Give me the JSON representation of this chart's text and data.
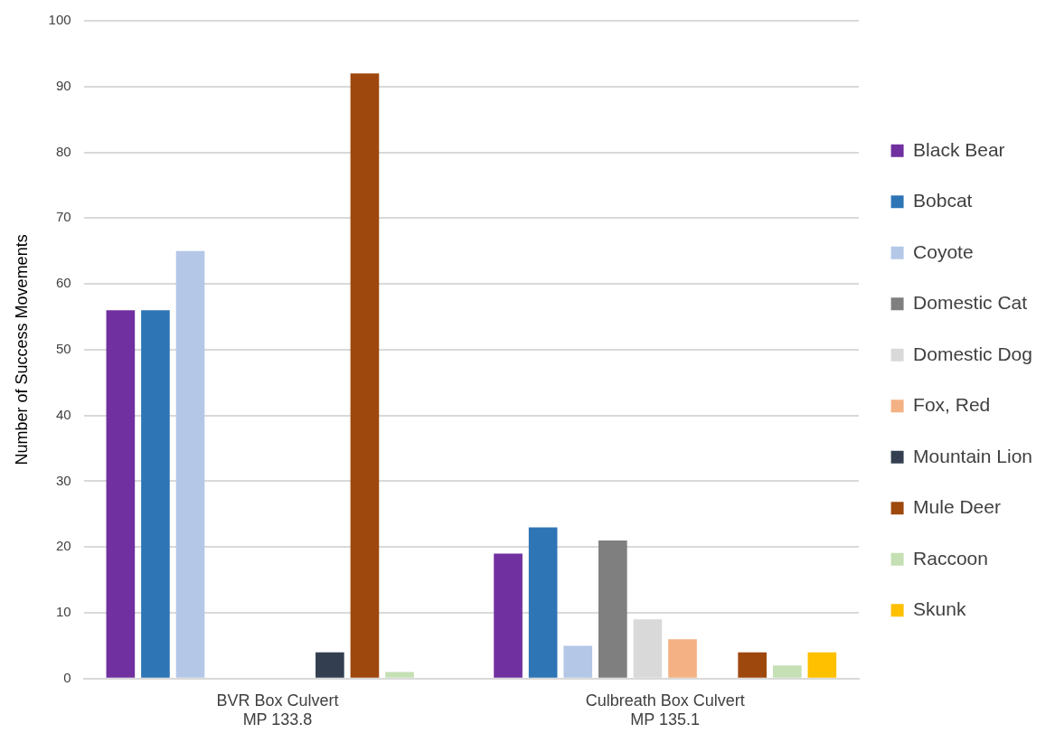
{
  "chart_data": {
    "type": "bar",
    "ylabel": "Number of Success Movements",
    "categories": [
      "BVR Box Culvert\nMP 133.8",
      "Culbreath Box Culvert\nMP 135.1"
    ],
    "series": [
      {
        "name": "Black Bear",
        "color": "#7030a0",
        "values": [
          56,
          19
        ]
      },
      {
        "name": "Bobcat",
        "color": "#2e75b6",
        "values": [
          56,
          23
        ]
      },
      {
        "name": "Coyote",
        "color": "#b4c7e7",
        "values": [
          65,
          5
        ]
      },
      {
        "name": "Domestic Cat",
        "color": "#7f7f7f",
        "values": [
          0,
          21
        ]
      },
      {
        "name": "Domestic Dog",
        "color": "#d9d9d9",
        "values": [
          0,
          9
        ]
      },
      {
        "name": "Fox, Red",
        "color": "#f4b183",
        "values": [
          0,
          6
        ]
      },
      {
        "name": "Mountain Lion",
        "color": "#333f50",
        "values": [
          4,
          0
        ]
      },
      {
        "name": "Mule Deer",
        "color": "#9e480e",
        "values": [
          92,
          4
        ]
      },
      {
        "name": "Raccoon",
        "color": "#c5e0b4",
        "values": [
          1,
          2
        ]
      },
      {
        "name": "Skunk",
        "color": "#ffc000",
        "values": [
          0,
          4
        ]
      }
    ],
    "ylim": [
      0,
      100
    ],
    "yticks": [
      0,
      10,
      20,
      30,
      40,
      50,
      60,
      70,
      80,
      90,
      100
    ],
    "grid": "y",
    "legend": "right"
  }
}
